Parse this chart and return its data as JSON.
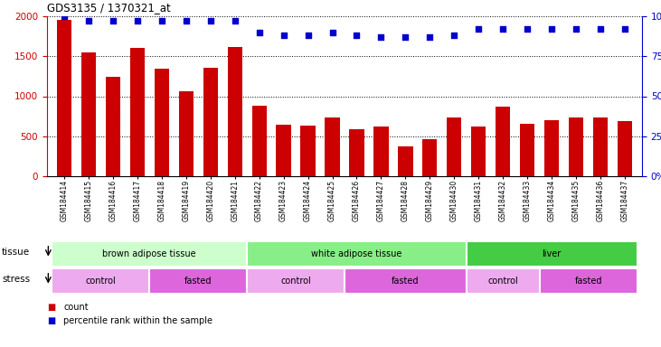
{
  "title": "GDS3135 / 1370321_at",
  "samples": [
    "GSM184414",
    "GSM184415",
    "GSM184416",
    "GSM184417",
    "GSM184418",
    "GSM184419",
    "GSM184420",
    "GSM184421",
    "GSM184422",
    "GSM184423",
    "GSM184424",
    "GSM184425",
    "GSM184426",
    "GSM184427",
    "GSM184428",
    "GSM184429",
    "GSM184430",
    "GSM184431",
    "GSM184432",
    "GSM184433",
    "GSM184434",
    "GSM184435",
    "GSM184436",
    "GSM184437"
  ],
  "counts": [
    1950,
    1550,
    1240,
    1600,
    1340,
    1060,
    1360,
    1620,
    880,
    640,
    630,
    730,
    590,
    620,
    370,
    460,
    740,
    620,
    870,
    660,
    700,
    740,
    730,
    690
  ],
  "percentile_ranks": [
    100,
    97,
    97,
    97,
    97,
    97,
    97,
    97,
    90,
    88,
    88,
    90,
    88,
    87,
    87,
    87,
    88,
    92,
    92,
    92,
    92,
    92,
    92,
    92
  ],
  "bar_color": "#cc0000",
  "dot_color": "#0000cc",
  "tissue_groups": [
    {
      "label": "brown adipose tissue",
      "start": 0,
      "end": 8,
      "color": "#ccffcc"
    },
    {
      "label": "white adipose tissue",
      "start": 8,
      "end": 17,
      "color": "#88ee88"
    },
    {
      "label": "liver",
      "start": 17,
      "end": 24,
      "color": "#44cc44"
    }
  ],
  "stress_groups": [
    {
      "label": "control",
      "start": 0,
      "end": 4,
      "color": "#eeaaee"
    },
    {
      "label": "fasted",
      "start": 4,
      "end": 8,
      "color": "#dd66dd"
    },
    {
      "label": "control",
      "start": 8,
      "end": 12,
      "color": "#eeaaee"
    },
    {
      "label": "fasted",
      "start": 12,
      "end": 17,
      "color": "#dd66dd"
    },
    {
      "label": "control",
      "start": 17,
      "end": 20,
      "color": "#eeaaee"
    },
    {
      "label": "fasted",
      "start": 20,
      "end": 24,
      "color": "#dd66dd"
    }
  ],
  "ylim_left": [
    0,
    2000
  ],
  "ylim_right": [
    0,
    100
  ],
  "yticks_left": [
    0,
    500,
    1000,
    1500,
    2000
  ],
  "yticks_right": [
    0,
    25,
    50,
    75,
    100
  ],
  "left_axis_color": "#cc0000",
  "right_axis_color": "#0000cc",
  "plot_bg_color": "#ffffff"
}
